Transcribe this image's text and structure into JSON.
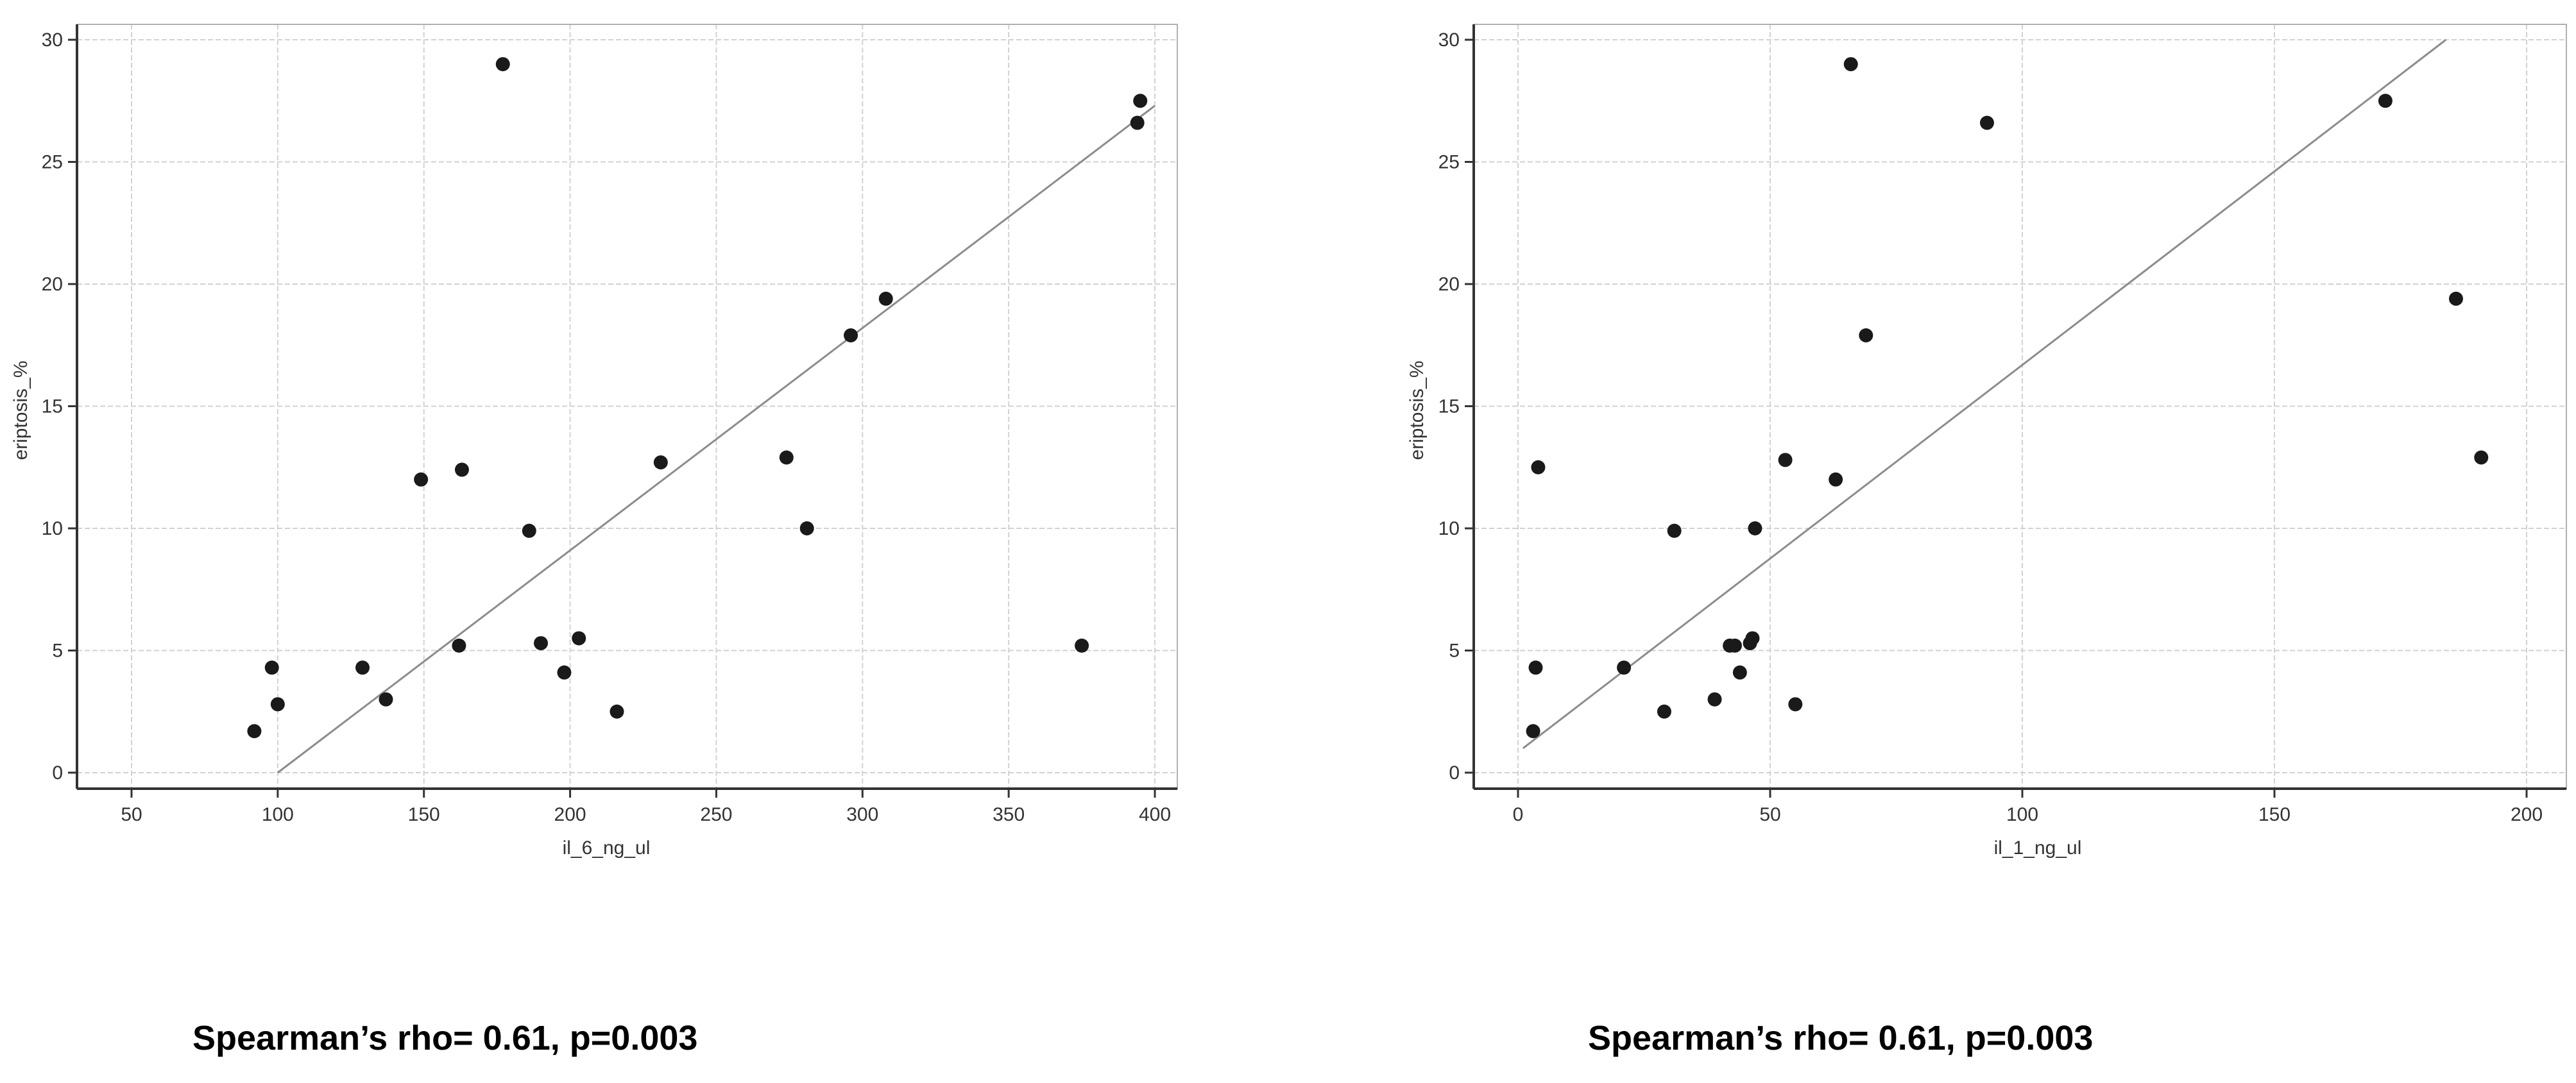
{
  "colors": {
    "point": "#1a1a1a",
    "fit_line": "#8c8c8c",
    "grid": "#d2d2d2",
    "axis": "#333333"
  },
  "chart_data": [
    {
      "type": "scatter",
      "title": "",
      "xlabel": "il_6_ng_ul",
      "ylabel": "eriptosis_%",
      "xlim": [
        50,
        400
      ],
      "ylim": [
        0,
        30
      ],
      "xticks": [
        50,
        100,
        150,
        200,
        250,
        300,
        350,
        400
      ],
      "xtick_labels": [
        "50",
        "100",
        "150",
        "200",
        "250",
        "300",
        "350",
        "400"
      ],
      "yticks": [
        0,
        5,
        10,
        15,
        20,
        25,
        30
      ],
      "ytick_labels": [
        "0",
        "5",
        "10",
        "15",
        "20",
        "25",
        "30"
      ],
      "grid": true,
      "points": [
        {
          "x": 92,
          "y": 1.7
        },
        {
          "x": 98,
          "y": 4.3
        },
        {
          "x": 100,
          "y": 2.8
        },
        {
          "x": 129,
          "y": 4.3
        },
        {
          "x": 137,
          "y": 3.0
        },
        {
          "x": 149,
          "y": 12.0
        },
        {
          "x": 162,
          "y": 5.2
        },
        {
          "x": 163,
          "y": 12.4
        },
        {
          "x": 177,
          "y": 29.0
        },
        {
          "x": 186,
          "y": 9.9
        },
        {
          "x": 190,
          "y": 5.3
        },
        {
          "x": 198,
          "y": 4.1
        },
        {
          "x": 203,
          "y": 5.5
        },
        {
          "x": 216,
          "y": 2.5
        },
        {
          "x": 231,
          "y": 12.7
        },
        {
          "x": 274,
          "y": 12.9
        },
        {
          "x": 281,
          "y": 10.0
        },
        {
          "x": 296,
          "y": 17.9
        },
        {
          "x": 308,
          "y": 19.4
        },
        {
          "x": 375,
          "y": 5.2
        },
        {
          "x": 394,
          "y": 26.6
        },
        {
          "x": 395,
          "y": 27.5
        }
      ],
      "fit_line": [
        {
          "x": 100,
          "y": 0.0
        },
        {
          "x": 400,
          "y": 27.3
        }
      ]
    },
    {
      "type": "scatter",
      "title": "",
      "xlabel": "il_1_ng_ul",
      "ylabel": "eriptosis_%",
      "xlim": [
        0,
        200
      ],
      "ylim": [
        0,
        30
      ],
      "xticks": [
        0,
        50,
        100,
        150,
        200
      ],
      "xtick_labels": [
        "0",
        "50",
        "100",
        "150",
        "200"
      ],
      "yticks": [
        0,
        5,
        10,
        15,
        20,
        25,
        30
      ],
      "ytick_labels": [
        "0",
        "5",
        "10",
        "15",
        "20",
        "25",
        "30"
      ],
      "grid": true,
      "points": [
        {
          "x": 3,
          "y": 1.7
        },
        {
          "x": 3.5,
          "y": 4.3
        },
        {
          "x": 4,
          "y": 12.5
        },
        {
          "x": 21,
          "y": 4.3
        },
        {
          "x": 29,
          "y": 2.5
        },
        {
          "x": 31,
          "y": 9.9
        },
        {
          "x": 39,
          "y": 3.0
        },
        {
          "x": 42,
          "y": 5.2
        },
        {
          "x": 43,
          "y": 5.2
        },
        {
          "x": 44,
          "y": 4.1
        },
        {
          "x": 46,
          "y": 5.3
        },
        {
          "x": 46.5,
          "y": 5.5
        },
        {
          "x": 47,
          "y": 10.0
        },
        {
          "x": 53,
          "y": 12.8
        },
        {
          "x": 55,
          "y": 2.8
        },
        {
          "x": 63,
          "y": 12.0
        },
        {
          "x": 66,
          "y": 29.0
        },
        {
          "x": 69,
          "y": 17.9
        },
        {
          "x": 93,
          "y": 26.6
        },
        {
          "x": 172,
          "y": 27.5
        },
        {
          "x": 186,
          "y": 19.4
        },
        {
          "x": 191,
          "y": 12.9
        }
      ],
      "fit_line": [
        {
          "x": 1,
          "y": 1.0
        },
        {
          "x": 184,
          "y": 30.0
        }
      ]
    }
  ],
  "captions": [
    "Spearman’s rho= 0.61, p=0.003",
    "Spearman’s rho= 0.61, p=0.003"
  ]
}
